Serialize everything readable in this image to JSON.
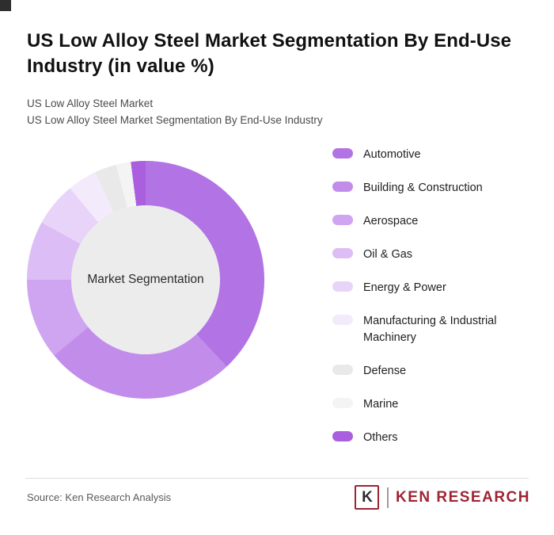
{
  "title": "US Low Alloy Steel Market Segmentation By End-Use Industry (in value %)",
  "subtitle1": "US Low Alloy Steel Market",
  "subtitle2": "US Low Alloy Steel Market Segmentation By End-Use Industry",
  "chart_data": {
    "type": "pie",
    "subtype": "donut",
    "title": "US Low Alloy Steel Market Segmentation By End-Use Industry (in value %)",
    "center_label": "Market Segmentation",
    "legend_position": "right",
    "categories": [
      "Automotive",
      "Building & Construction",
      "Aerospace",
      "Oil & Gas",
      "Energy & Power",
      "Manufacturing & Industrial Machinery",
      "Defense",
      "Marine",
      "Others"
    ],
    "values": [
      38,
      26,
      11,
      8,
      6,
      4,
      3,
      2,
      2
    ],
    "colors": [
      "#b273e4",
      "#c28ceb",
      "#cfa4f1",
      "#ddbdf5",
      "#e9d4f9",
      "#f3eafc",
      "#e9e9ea",
      "#f4f4f5",
      "#aa60de"
    ]
  },
  "footer": {
    "source": "Source: Ken Research Analysis",
    "logo_k": "K",
    "logo_text": "KEN RESEARCH"
  }
}
